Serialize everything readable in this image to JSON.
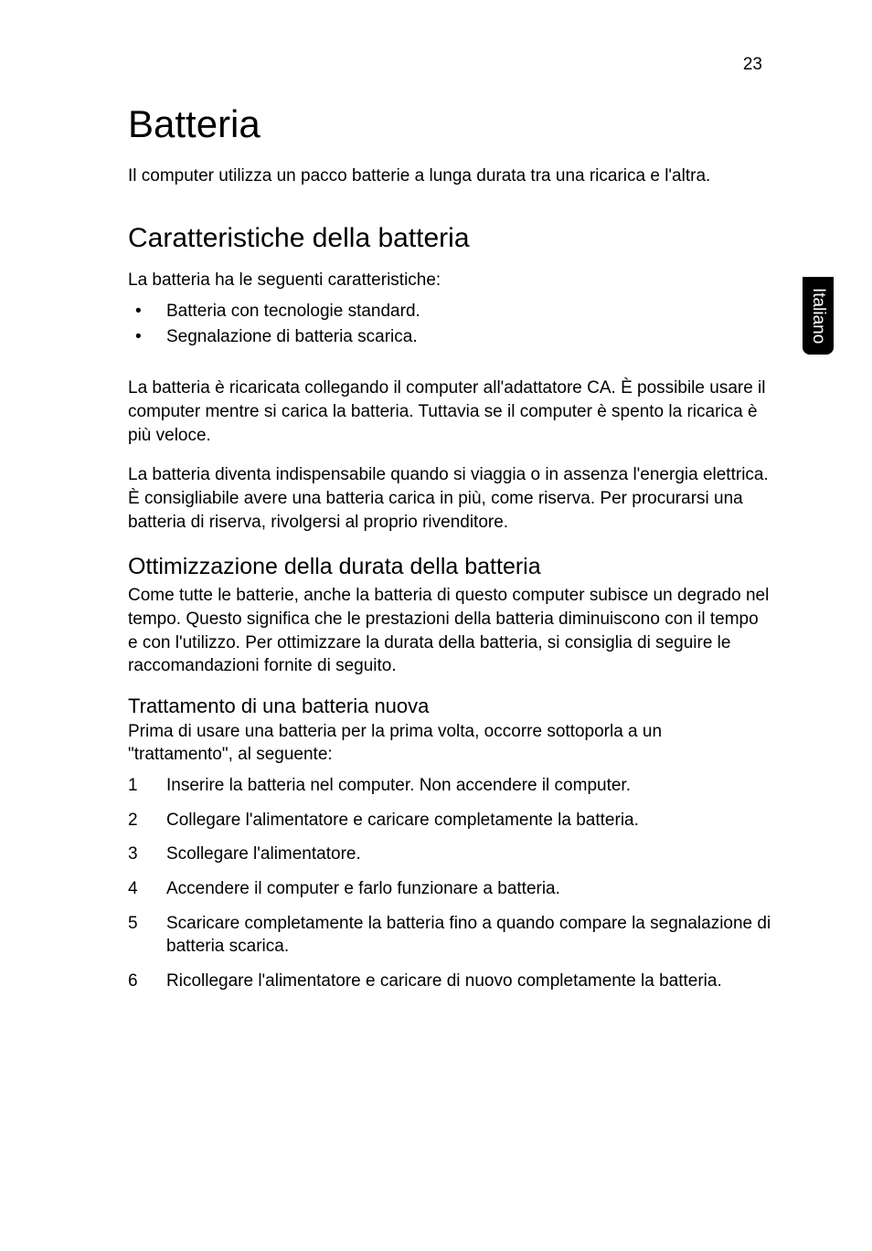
{
  "page_number": "23",
  "side_tab": "Italiano",
  "title": "Batteria",
  "intro": "Il computer utilizza un pacco batterie a lunga durata tra una ricarica e l'altra.",
  "section1": {
    "heading": "Caratteristiche della batteria",
    "lead": "La batteria ha le seguenti caratteristiche:",
    "features": [
      "Batteria con tecnologie standard.",
      "Segnalazione di batteria scarica."
    ],
    "para1": "La batteria è ricaricata collegando il computer all'adattatore CA. È possibile usare il computer mentre si carica la batteria. Tuttavia se il computer è spento la ricarica è più veloce.",
    "para2": "La batteria diventa indispensabile quando si viaggia o in assenza l'energia elettrica. È consigliabile avere una batteria carica in più, come riserva. Per procurarsi una batteria di riserva, rivolgersi al proprio rivenditore."
  },
  "section2": {
    "heading": "Ottimizzazione della durata della batteria",
    "para": "Come tutte le batterie, anche la batteria di questo computer subisce un degrado nel tempo. Questo significa che le prestazioni della batteria diminuiscono con il tempo e con l'utilizzo. Per ottimizzare la durata della batteria, si consiglia di seguire le raccomandazioni fornite di seguito."
  },
  "section3": {
    "heading": "Trattamento di una batteria nuova",
    "lead": "Prima di usare una batteria per la prima volta, occorre sottoporla a un \"trattamento\", al seguente:",
    "steps": [
      "Inserire la batteria nel computer. Non accendere il computer.",
      "Collegare l'alimentatore e caricare completamente la batteria.",
      "Scollegare l'alimentatore.",
      "Accendere il computer e farlo funzionare a batteria.",
      "Scaricare completamente la batteria fino a quando compare la segnalazione di batteria scarica.",
      "Ricollegare l'alimentatore e caricare di nuovo completamente la batteria."
    ]
  },
  "colors": {
    "background": "#ffffff",
    "text": "#000000",
    "tab_bg": "#000000",
    "tab_text": "#ffffff"
  }
}
